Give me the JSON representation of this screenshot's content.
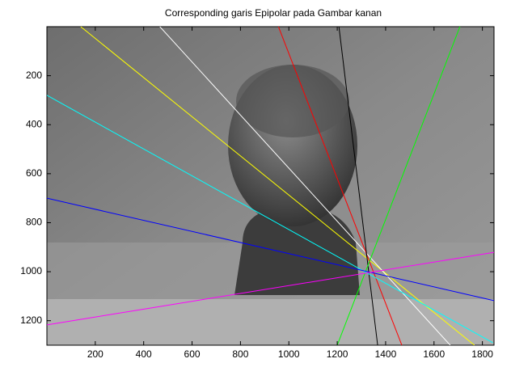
{
  "chart_data": {
    "type": "line",
    "title": "Corresponding garis Epipolar pada Gambar kanan",
    "xlim": [
      0,
      1848
    ],
    "ylim": [
      0,
      1300
    ],
    "y_reversed": true,
    "xticks": [
      200,
      400,
      600,
      800,
      1000,
      1200,
      1400,
      1600,
      1800
    ],
    "yticks": [
      200,
      400,
      600,
      800,
      1000,
      1200
    ],
    "series": [
      {
        "color": "#ffff00",
        "x": [
          140,
          1767
        ],
        "values": [
          0,
          1300
        ]
      },
      {
        "color": "#ffffff",
        "x": [
          467,
          1667
        ],
        "values": [
          0,
          1300
        ]
      },
      {
        "color": "#ff0000",
        "x": [
          957,
          1467
        ],
        "values": [
          0,
          1300
        ]
      },
      {
        "color": "#000000",
        "x": [
          1207,
          1367
        ],
        "values": [
          0,
          1300
        ]
      },
      {
        "color": "#00ff00",
        "x": [
          1707,
          1200
        ],
        "values": [
          0,
          1300
        ]
      },
      {
        "color": "#00ffff",
        "x": [
          0,
          1843
        ],
        "values": [
          280,
          1290
        ]
      },
      {
        "color": "#0000ff",
        "x": [
          0,
          1848
        ],
        "values": [
          700,
          1118
        ]
      },
      {
        "color": "#ff00ff",
        "x": [
          0,
          1848
        ],
        "values": [
          1217,
          921
        ]
      }
    ]
  }
}
